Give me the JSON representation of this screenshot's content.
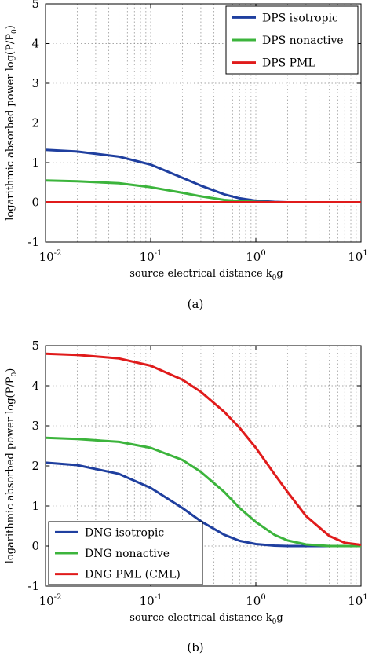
{
  "chart_data": [
    {
      "type": "line",
      "caption": "(a)",
      "xlabel": "source electrical distance k",
      "xlabel_sub": "0",
      "xlabel_tail": "g",
      "ylabel": "logarithmic absorbed power log(P/P",
      "ylabel_sub": "0",
      "ylabel_tail": ")",
      "xscale": "log",
      "xlim": [
        0.01,
        10
      ],
      "ylim": [
        -1,
        5
      ],
      "xtick_exponents": [
        "-2",
        "-1",
        "0",
        "1"
      ],
      "yticks": [
        "-1",
        "0",
        "1",
        "2",
        "3",
        "4",
        "5"
      ],
      "legend_position": "top-right",
      "series": [
        {
          "name": "DPS isotropic",
          "color": "#1f3f9f",
          "x": [
            0.01,
            0.02,
            0.05,
            0.1,
            0.2,
            0.3,
            0.5,
            0.7,
            1,
            1.5,
            2,
            3,
            5,
            10
          ],
          "y": [
            1.32,
            1.28,
            1.15,
            0.95,
            0.62,
            0.42,
            0.2,
            0.1,
            0.04,
            0.01,
            0,
            0,
            0,
            0
          ]
        },
        {
          "name": "DPS nonactive",
          "color": "#3cb43c",
          "x": [
            0.01,
            0.02,
            0.05,
            0.1,
            0.2,
            0.3,
            0.5,
            0.7,
            1,
            1.5,
            2,
            3,
            5,
            10
          ],
          "y": [
            0.55,
            0.53,
            0.48,
            0.38,
            0.24,
            0.15,
            0.06,
            0.03,
            0.01,
            0,
            0,
            0,
            0,
            0
          ]
        },
        {
          "name": "DPS PML",
          "color": "#e01b1b",
          "x": [
            0.01,
            10
          ],
          "y": [
            0,
            0
          ]
        }
      ]
    },
    {
      "type": "line",
      "caption": "(b)",
      "xlabel": "source electrical distance k",
      "xlabel_sub": "0",
      "xlabel_tail": "g",
      "ylabel": "logarithmic absorbed power log(P/P",
      "ylabel_sub": "0",
      "ylabel_tail": ")",
      "xscale": "log",
      "xlim": [
        0.01,
        10
      ],
      "ylim": [
        -1,
        5
      ],
      "xtick_exponents": [
        "-2",
        "-1",
        "0",
        "1"
      ],
      "yticks": [
        "-1",
        "0",
        "1",
        "2",
        "3",
        "4",
        "5"
      ],
      "legend_position": "bottom-left",
      "series": [
        {
          "name": "DNG isotropic",
          "color": "#1f3f9f",
          "x": [
            0.01,
            0.02,
            0.05,
            0.1,
            0.2,
            0.3,
            0.5,
            0.7,
            1,
            1.5,
            2,
            3,
            5,
            10
          ],
          "y": [
            2.08,
            2.02,
            1.8,
            1.45,
            0.95,
            0.62,
            0.28,
            0.13,
            0.05,
            0.01,
            0,
            0,
            0,
            0
          ]
        },
        {
          "name": "DNG nonactive",
          "color": "#3cb43c",
          "x": [
            0.01,
            0.02,
            0.05,
            0.1,
            0.2,
            0.3,
            0.5,
            0.7,
            1,
            1.5,
            2,
            3,
            5,
            10
          ],
          "y": [
            2.7,
            2.67,
            2.6,
            2.45,
            2.15,
            1.85,
            1.35,
            0.95,
            0.6,
            0.28,
            0.14,
            0.04,
            0,
            0
          ]
        },
        {
          "name": "DNG PML (CML)",
          "color": "#e01b1b",
          "x": [
            0.01,
            0.02,
            0.05,
            0.1,
            0.2,
            0.3,
            0.5,
            0.7,
            1,
            1.5,
            2,
            3,
            5,
            7,
            10
          ],
          "y": [
            4.8,
            4.77,
            4.68,
            4.5,
            4.15,
            3.85,
            3.35,
            2.95,
            2.45,
            1.8,
            1.35,
            0.75,
            0.25,
            0.08,
            0.03
          ]
        }
      ]
    }
  ]
}
